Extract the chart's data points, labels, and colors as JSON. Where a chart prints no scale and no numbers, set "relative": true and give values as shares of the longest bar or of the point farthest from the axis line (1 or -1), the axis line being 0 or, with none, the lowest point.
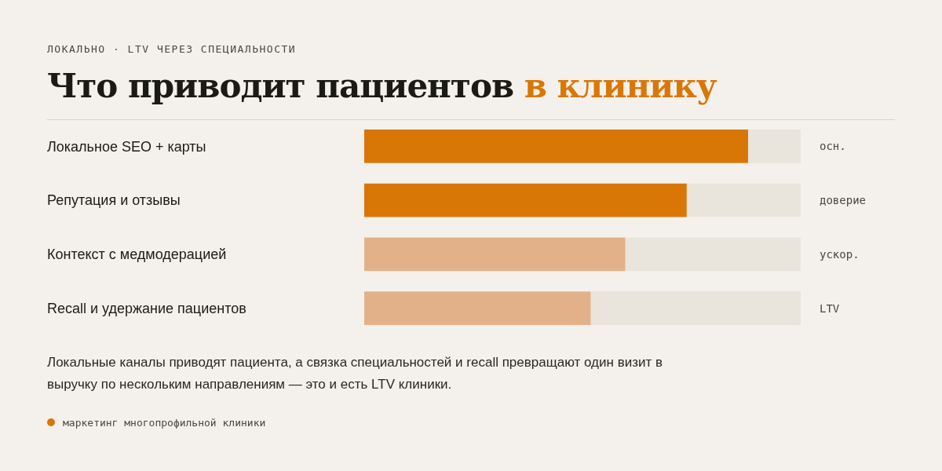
{
  "chart_data": {
    "type": "bar",
    "orientation": "horizontal",
    "relative": true,
    "subtitle": "ЛОКАЛЬНО · LTV ЧЕРЕЗ СПЕЦИАЛЬНОСТИ",
    "title": "Что приводит пациентов в клинику",
    "categories": [
      "Локальное SEO + карты",
      "Репутация и отзывы",
      "Контекст с медмодерацией",
      "Recall и удержание пациентов"
    ],
    "values": [
      1,
      0.84,
      0.68,
      0.59
    ],
    "colors": [
      "#d97706",
      "#d97706",
      "#e2b189",
      "#e2b189"
    ],
    "annotations": [
      "осн.",
      "доверие",
      "ускор.",
      "LTV",
      "Локальные каналы приводят пациента, а связка специальностей и recall превращают один визит в выручку по нескольким направлениям — это и есть LTV клиники.",
      "маркетинг многопрофильной клиники"
    ]
  }
}
